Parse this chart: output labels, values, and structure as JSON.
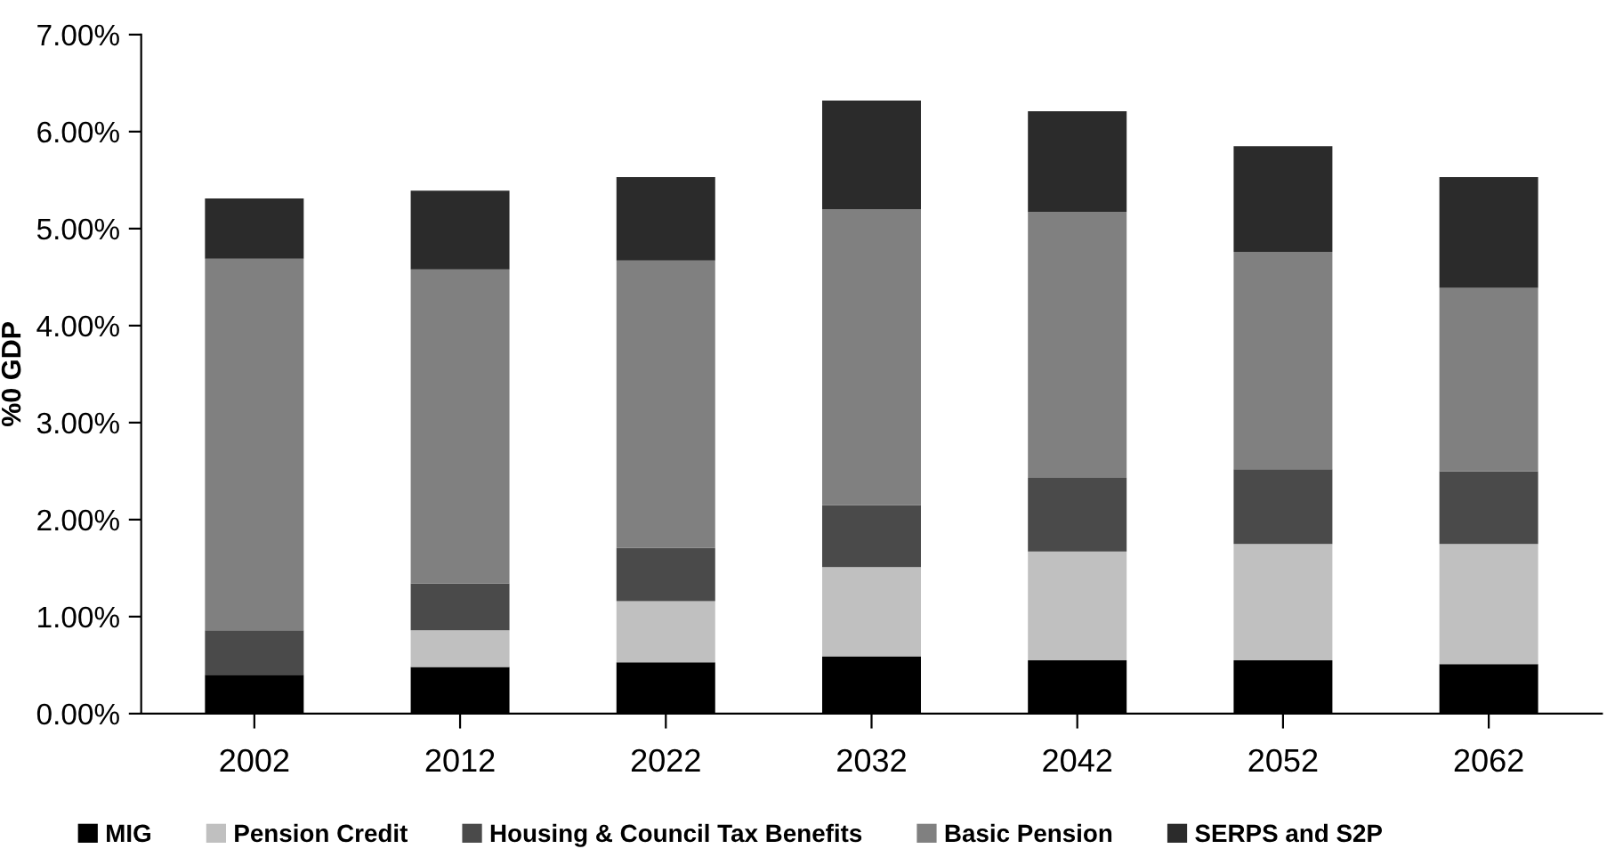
{
  "chart_data": {
    "type": "bar",
    "stacked": true,
    "ylabel": "%0 GDP",
    "categories": [
      "2002",
      "2012",
      "2022",
      "2032",
      "2042",
      "2052",
      "2062"
    ],
    "series": [
      {
        "name": "MIG",
        "color": "#000000",
        "values": [
          0.4,
          0.48,
          0.53,
          0.59,
          0.55,
          0.55,
          0.51
        ]
      },
      {
        "name": "Pension Credit",
        "color": "#c0c0c0",
        "values": [
          0,
          0.38,
          0.63,
          0.92,
          1.12,
          1.2,
          1.24
        ]
      },
      {
        "name": "Housing & Council Tax Benefits",
        "color": "#4a4a4a",
        "values": [
          0.46,
          0.48,
          0.55,
          0.64,
          0.76,
          0.77,
          0.75
        ]
      },
      {
        "name": "Basic Pension",
        "color": "#808080",
        "values": [
          3.83,
          3.24,
          2.96,
          3.05,
          2.74,
          2.24,
          1.89
        ]
      },
      {
        "name": "SERPS and S2P",
        "color": "#2b2b2b",
        "values": [
          0.62,
          0.81,
          0.86,
          1.12,
          1.04,
          1.09,
          1.14
        ]
      }
    ],
    "ylim": [
      0,
      7
    ],
    "yticks": [
      {
        "value": 0,
        "label": "0.00%"
      },
      {
        "value": 1,
        "label": "1.00%"
      },
      {
        "value": 2,
        "label": "2.00%"
      },
      {
        "value": 3,
        "label": "3.00%"
      },
      {
        "value": 4,
        "label": "4.00%"
      },
      {
        "value": 5,
        "label": "5.00%"
      },
      {
        "value": 6,
        "label": "6.00%"
      },
      {
        "value": 7,
        "label": "7.00%"
      }
    ],
    "grid": false,
    "legend": "bottom"
  }
}
